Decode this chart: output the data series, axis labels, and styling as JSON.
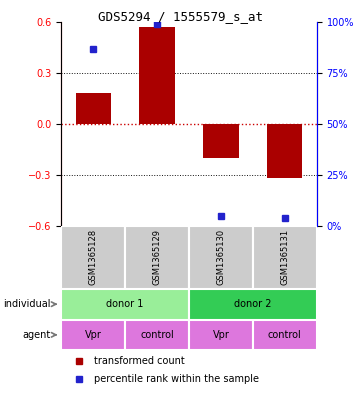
{
  "title": "GDS5294 / 1555579_s_at",
  "samples": [
    "GSM1365128",
    "GSM1365129",
    "GSM1365130",
    "GSM1365131"
  ],
  "bar_values": [
    0.18,
    0.57,
    -0.2,
    -0.32
  ],
  "percentile_values": [
    0.44,
    0.585,
    -0.54,
    -0.555
  ],
  "ylim": [
    -0.6,
    0.6
  ],
  "y_ticks_left": [
    -0.6,
    -0.3,
    0.0,
    0.3,
    0.6
  ],
  "y_ticks_right": [
    0,
    25,
    50,
    75,
    100
  ],
  "bar_color": "#aa0000",
  "percentile_color": "#2222cc",
  "zero_line_color": "#cc0000",
  "grid_color": "#111111",
  "individual_row": [
    {
      "label": "donor 1",
      "span": [
        0,
        2
      ],
      "color": "#99ee99"
    },
    {
      "label": "donor 2",
      "span": [
        2,
        4
      ],
      "color": "#33cc55"
    }
  ],
  "agent_row": [
    {
      "label": "Vpr",
      "span": [
        0,
        1
      ],
      "color": "#dd77dd"
    },
    {
      "label": "control",
      "span": [
        1,
        2
      ],
      "color": "#dd77dd"
    },
    {
      "label": "Vpr",
      "span": [
        2,
        3
      ],
      "color": "#dd77dd"
    },
    {
      "label": "control",
      "span": [
        3,
        4
      ],
      "color": "#dd77dd"
    }
  ],
  "legend_items": [
    {
      "label": "transformed count",
      "color": "#aa0000"
    },
    {
      "label": "percentile rank within the sample",
      "color": "#2222cc"
    }
  ],
  "bg_color": "#cccccc",
  "title_fontsize": 9,
  "tick_fontsize": 7,
  "sample_fontsize": 6,
  "row_fontsize": 7,
  "legend_fontsize": 7
}
